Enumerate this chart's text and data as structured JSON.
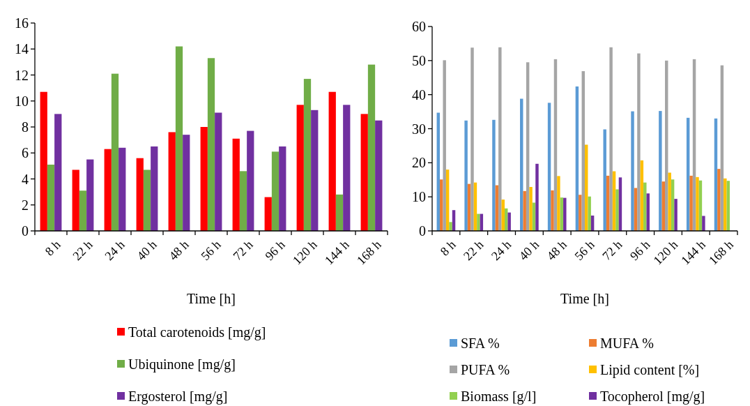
{
  "chart_data": [
    {
      "type": "bar",
      "xlabel": "Time [h]",
      "categories": [
        "8 h",
        "22 h",
        "24 h",
        "40 h",
        "48 h",
        "56 h",
        "72 h",
        "96 h",
        "120 h",
        "144 h",
        "168 h"
      ],
      "series": [
        {
          "name": "Total carotenoids [mg/g]",
          "color": "#ff0000",
          "values": [
            10.7,
            4.7,
            6.3,
            5.6,
            7.6,
            8.0,
            7.1,
            2.6,
            9.7,
            10.7,
            9.0
          ]
        },
        {
          "name": "Ubiquinone [mg/g]",
          "color": "#70ad47",
          "values": [
            5.1,
            3.1,
            12.1,
            4.7,
            14.2,
            13.3,
            4.6,
            6.1,
            11.7,
            2.8,
            12.8
          ]
        },
        {
          "name": "Ergosterol [mg/g]",
          "color": "#7030a0",
          "values": [
            9.0,
            5.5,
            6.4,
            6.5,
            7.4,
            9.1,
            7.7,
            6.5,
            9.3,
            9.7,
            8.5
          ]
        }
      ],
      "ylim": [
        0,
        16
      ],
      "yticks": [
        0,
        2,
        4,
        6,
        8,
        10,
        12,
        14,
        16
      ],
      "grid": false,
      "legend": "bottom"
    },
    {
      "type": "bar",
      "xlabel": "Time [h]",
      "categories": [
        "8 h",
        "22 h",
        "24 h",
        "40 h",
        "48 h",
        "56 h",
        "72 h",
        "96 h",
        "120 h",
        "144 h",
        "168 h"
      ],
      "series": [
        {
          "name": "SFA %",
          "color": "#5b9bd5",
          "values": [
            34.7,
            32.4,
            32.6,
            38.8,
            37.6,
            42.4,
            29.8,
            35.1,
            35.2,
            33.2,
            33.0
          ]
        },
        {
          "name": "MUFA %",
          "color": "#ed7d31",
          "values": [
            15.1,
            13.8,
            13.4,
            11.7,
            11.9,
            10.6,
            16.2,
            12.6,
            14.5,
            16.2,
            18.2
          ]
        },
        {
          "name": "PUFA %",
          "color": "#a5a5a5",
          "values": [
            50.1,
            53.8,
            53.9,
            49.5,
            50.4,
            46.9,
            53.9,
            52.1,
            50.0,
            50.4,
            48.6
          ]
        },
        {
          "name": "Lipid content [%]",
          "color": "#ffc000",
          "values": [
            18.0,
            14.2,
            9.2,
            12.9,
            16.1,
            25.3,
            17.5,
            20.7,
            17.1,
            15.8,
            15.4
          ]
        },
        {
          "name": "Biomass [g/l]",
          "color": "#92d050",
          "values": [
            2.6,
            5.0,
            6.6,
            8.3,
            9.8,
            10.1,
            12.2,
            14.2,
            15.1,
            14.8,
            14.7
          ]
        },
        {
          "name": "Tocopherol [mg/g]",
          "color": "#7030a0",
          "values": [
            6.1,
            5.0,
            5.4,
            19.7,
            9.7,
            4.5,
            15.7,
            11.0,
            9.4,
            4.4,
            null
          ]
        }
      ],
      "ylim": [
        0,
        60
      ],
      "yticks": [
        0,
        10,
        20,
        30,
        40,
        50,
        60
      ],
      "grid": false,
      "legend": "bottom"
    }
  ]
}
